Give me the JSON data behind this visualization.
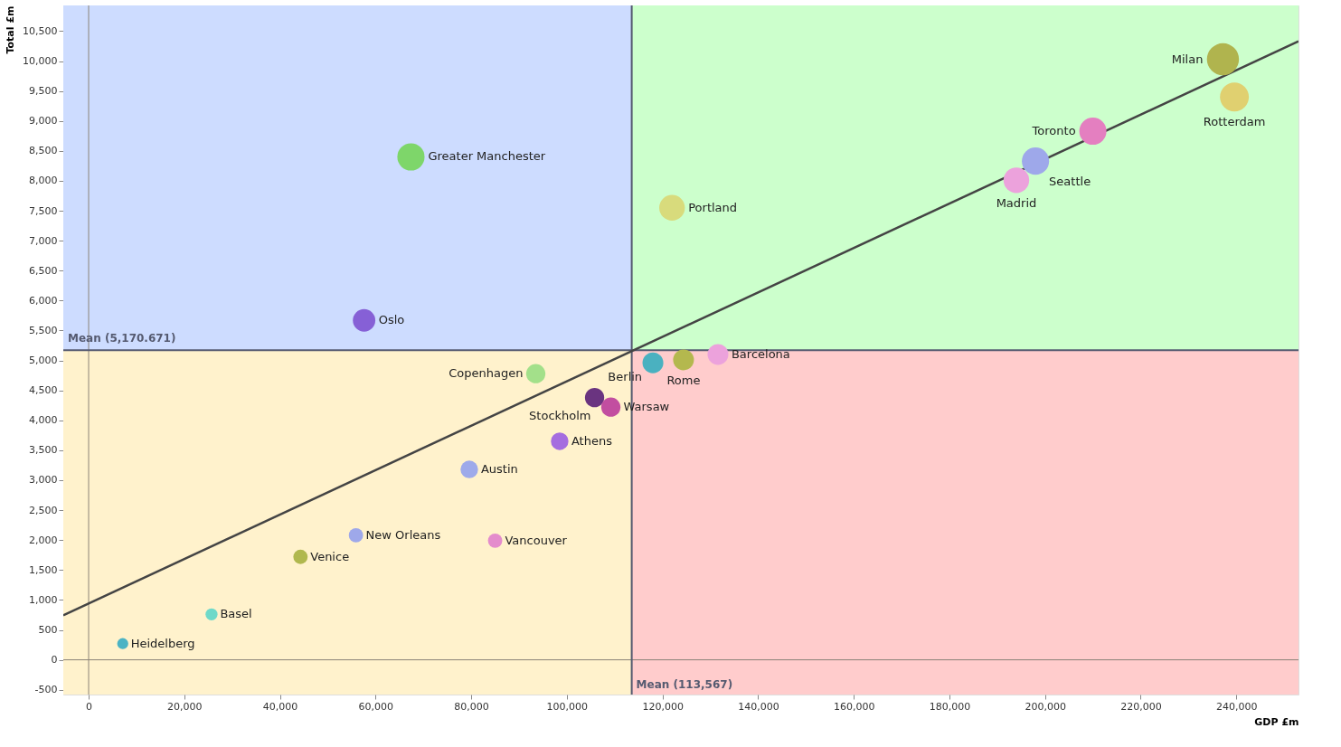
{
  "chart_data": {
    "type": "bubble",
    "xlabel": "GDP £m",
    "ylabel": "Total £m",
    "xlim": [
      -5300,
      253000
    ],
    "ylim": [
      -580,
      10930
    ],
    "xticks": [
      0,
      {
        "value": 20000,
        "label": "20,000"
      },
      {
        "value": 40000,
        "label": "40,000"
      },
      {
        "value": 60000,
        "label": "60,000"
      },
      {
        "value": 80000,
        "label": "80,000"
      },
      {
        "value": 100000,
        "label": "100,000"
      },
      {
        "value": 120000,
        "label": "120,000"
      },
      {
        "value": 140000,
        "label": "140,000"
      },
      {
        "value": 160000,
        "label": "160,000"
      },
      {
        "value": 180000,
        "label": "180,000"
      },
      {
        "value": 200000,
        "label": "200,000"
      },
      {
        "value": 220000,
        "label": "220,000"
      },
      {
        "value": 240000,
        "label": "240,000"
      }
    ],
    "yticks": [
      -500,
      0,
      500,
      {
        "value": 1000,
        "label": "1,000"
      },
      {
        "value": 1500,
        "label": "1,500"
      },
      {
        "value": 2000,
        "label": "2,000"
      },
      {
        "value": 2500,
        "label": "2,500"
      },
      {
        "value": 3000,
        "label": "3,000"
      },
      {
        "value": 3500,
        "label": "3,500"
      },
      {
        "value": 4000,
        "label": "4,000"
      },
      {
        "value": 4500,
        "label": "4,500"
      },
      {
        "value": 5000,
        "label": "5,000"
      },
      {
        "value": 5500,
        "label": "5,500"
      },
      {
        "value": 6000,
        "label": "6,000"
      },
      {
        "value": 6500,
        "label": "6,500"
      },
      {
        "value": 7000,
        "label": "7,000"
      },
      {
        "value": 7500,
        "label": "7,500"
      },
      {
        "value": 8000,
        "label": "8,000"
      },
      {
        "value": 8500,
        "label": "8,500"
      },
      {
        "value": 9000,
        "label": "9,000"
      },
      {
        "value": 9500,
        "label": "9,500"
      },
      {
        "value": 10000,
        "label": "10,000"
      },
      {
        "value": 10500,
        "label": "10,500"
      }
    ],
    "ref_lines": [
      {
        "axis": "x",
        "value": 0,
        "color": "#8b8378"
      },
      {
        "axis": "y",
        "value": 0,
        "color": "#8b8378"
      },
      {
        "axis": "x",
        "value": 113567,
        "label": "Mean (113,567)",
        "color": "#555a70"
      },
      {
        "axis": "y",
        "value": 5170.671,
        "label": "Mean (5,170.671)",
        "color": "#555a70"
      }
    ],
    "series": [
      {
        "name": "Heidelberg",
        "color": "#4bb3c4",
        "x": [
          7130
        ],
        "values": [
          270
        ],
        "sizes": [
          0.12
        ]
      },
      {
        "name": "Basel",
        "color": "#6fd9c9",
        "x": [
          25700
        ],
        "values": [
          760
        ],
        "sizes": [
          0.14
        ]
      },
      {
        "name": "Venice",
        "color": "#b0b84e",
        "x": [
          44300
        ],
        "values": [
          1720
        ],
        "sizes": [
          0.2
        ]
      },
      {
        "name": "New Orleans",
        "color": "#9ea8ea",
        "x": [
          55900
        ],
        "values": [
          2080
        ],
        "sizes": [
          0.2
        ]
      },
      {
        "name": "Vancouver",
        "color": "#e48ccc",
        "x": [
          85000
        ],
        "values": [
          1990
        ],
        "sizes": [
          0.2
        ]
      },
      {
        "name": "Austin",
        "color": "#9eaaea",
        "x": [
          79600
        ],
        "values": [
          3180
        ],
        "sizes": [
          0.3
        ]
      },
      {
        "name": "Athens",
        "color": "#a56ddf",
        "x": [
          98500
        ],
        "values": [
          3650
        ],
        "sizes": [
          0.3
        ]
      },
      {
        "name": "Stockholm",
        "color": "#6a3480",
        "x": [
          105800
        ],
        "values": [
          4380
        ],
        "sizes": [
          0.36
        ]
      },
      {
        "name": "Warsaw",
        "color": "#c24ea0",
        "x": [
          109200
        ],
        "values": [
          4220
        ],
        "sizes": [
          0.36
        ]
      },
      {
        "name": "Copenhagen",
        "color": "#a3e08a",
        "x": [
          93500
        ],
        "values": [
          4780
        ],
        "sizes": [
          0.36
        ]
      },
      {
        "name": "Berlin",
        "color": "#4ab1c0",
        "x": [
          118000
        ],
        "values": [
          4960
        ],
        "sizes": [
          0.42
        ]
      },
      {
        "name": "Rome",
        "color": "#b4b84e",
        "x": [
          124400
        ],
        "values": [
          5010
        ],
        "sizes": [
          0.42
        ]
      },
      {
        "name": "Barcelona",
        "color": "#eca2dc",
        "x": [
          131600
        ],
        "values": [
          5100
        ],
        "sizes": [
          0.42
        ]
      },
      {
        "name": "Oslo",
        "color": "#8660d6",
        "x": [
          57600
        ],
        "values": [
          5670
        ],
        "sizes": [
          0.49
        ]
      },
      {
        "name": "Greater Manchester",
        "color": "#7ed66a",
        "x": [
          67400
        ],
        "values": [
          8400
        ],
        "sizes": [
          0.72
        ]
      },
      {
        "name": "Portland",
        "color": "#d8db7c",
        "x": [
          122000
        ],
        "values": [
          7550
        ],
        "sizes": [
          0.64
        ]
      },
      {
        "name": "Madrid",
        "color": "#eca2dc",
        "x": [
          194000
        ],
        "values": [
          8010
        ],
        "sizes": [
          0.64
        ]
      },
      {
        "name": "Seattle",
        "color": "#9ea8ea",
        "x": [
          198000
        ],
        "values": [
          8330
        ],
        "sizes": [
          0.72
        ]
      },
      {
        "name": "Toronto",
        "color": "#e47fc0",
        "x": [
          210000
        ],
        "values": [
          8830
        ],
        "sizes": [
          0.72
        ]
      },
      {
        "name": "Milan",
        "color": "#b0b44e",
        "x": [
          237200
        ],
        "values": [
          10030
        ],
        "sizes": [
          1
        ]
      },
      {
        "name": "Rotterdam",
        "color": "#e0d070",
        "x": [
          239600
        ],
        "values": [
          9400
        ],
        "sizes": [
          0.81
        ]
      },
      {
        "type": "line",
        "color": "#444444",
        "x": [
          -5300,
          253000
        ],
        "values": [
          745,
          10330
        ]
      }
    ]
  }
}
